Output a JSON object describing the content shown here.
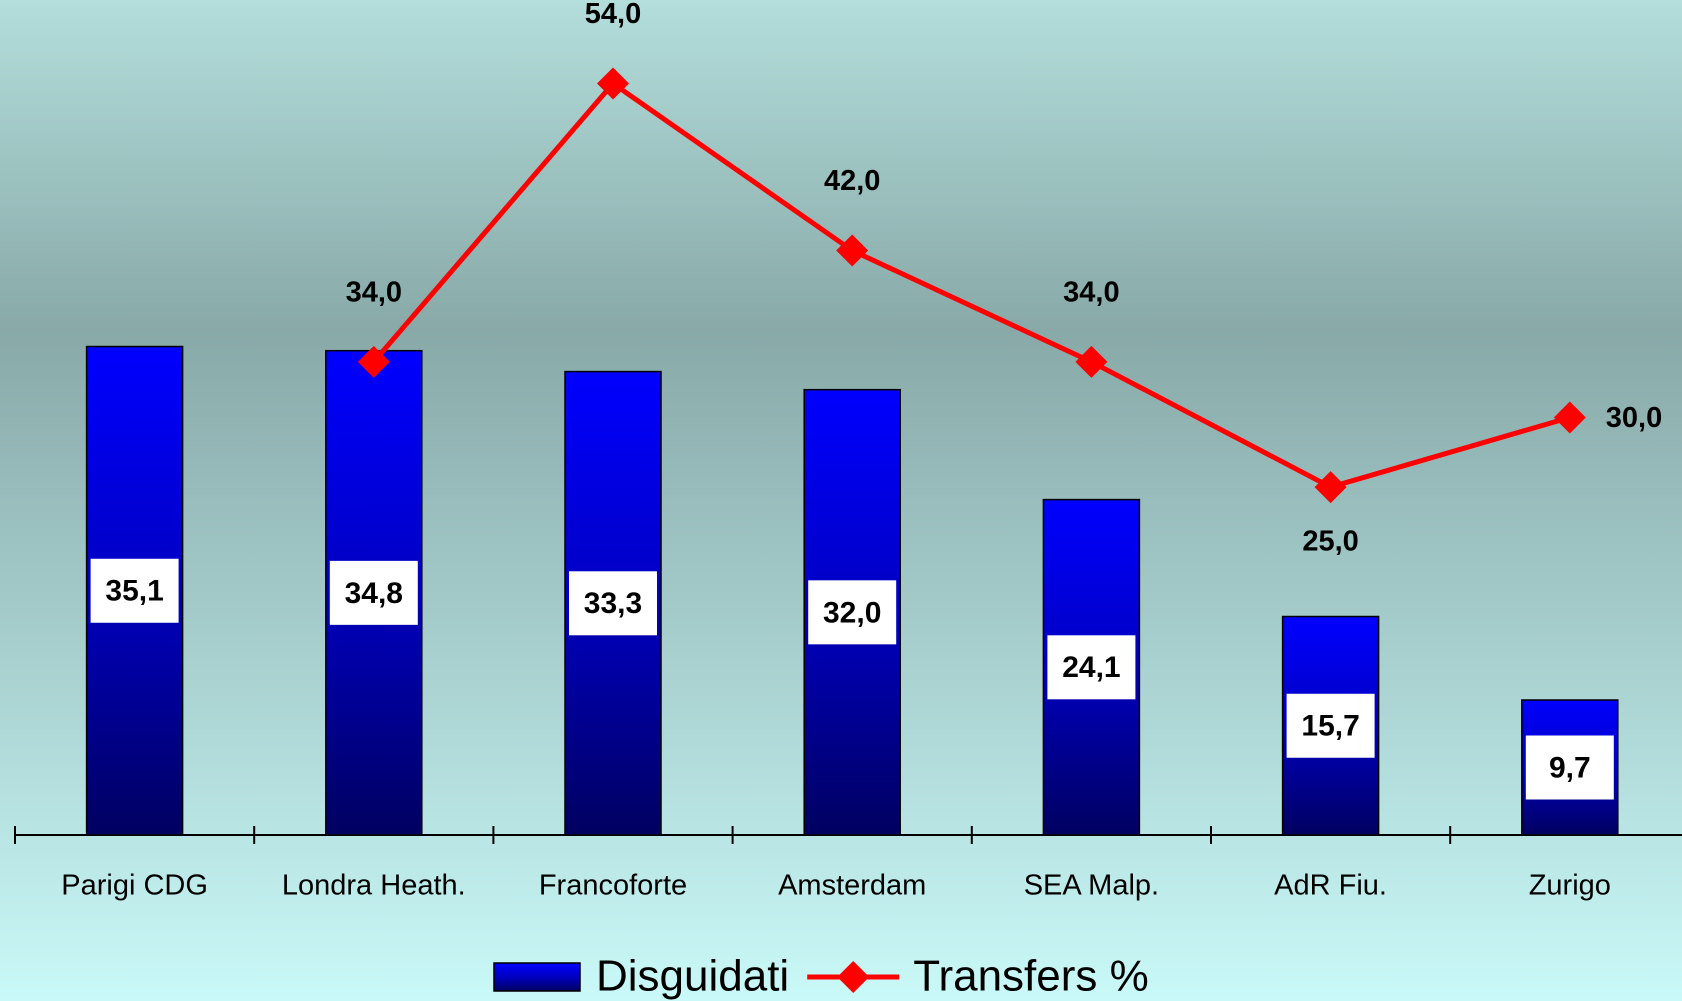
{
  "chart_data": {
    "type": "bar",
    "categories": [
      "Parigi CDG",
      "Londra Heath.",
      "Francoforte",
      "Amsterdam",
      "SEA Malp.",
      "AdR Fiu.",
      "Zurigo"
    ],
    "series": [
      {
        "name": "Disguidati",
        "type": "bar",
        "color": "#0000ff",
        "values": [
          35.1,
          34.8,
          33.3,
          32.0,
          24.1,
          15.7,
          9.7
        ],
        "value_labels": [
          "35,1",
          "34,8",
          "33,3",
          "32,0",
          "24,1",
          "15,7",
          "9,7"
        ]
      },
      {
        "name": "Transfers %",
        "type": "line",
        "color": "#ff0000",
        "values": [
          null,
          34.0,
          54.0,
          42.0,
          34.0,
          25.0,
          30.0
        ],
        "value_labels": [
          null,
          "34,0",
          "54,0",
          "42,0",
          "34,0",
          "25,0",
          "30,0"
        ]
      }
    ],
    "ylim": [
      0,
      60
    ],
    "legend": "bottom"
  }
}
